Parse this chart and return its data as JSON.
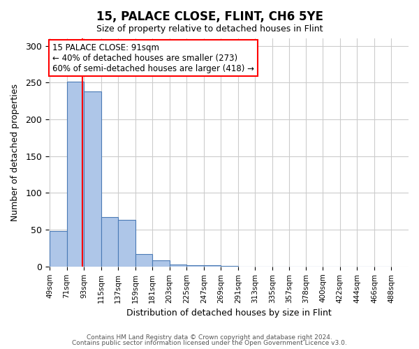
{
  "title": "15, PALACE CLOSE, FLINT, CH6 5YE",
  "subtitle": "Size of property relative to detached houses in Flint",
  "xlabel": "Distribution of detached houses by size in Flint",
  "ylabel": "Number of detached properties",
  "bar_color": "#aec6e8",
  "bar_edge_color": "#4a7ab5",
  "bin_edges": [
    49,
    71,
    93,
    115,
    137,
    159,
    181,
    203,
    225,
    247,
    269,
    291,
    313,
    335,
    357,
    378,
    400,
    422,
    444,
    466,
    488
  ],
  "bar_heights": [
    48,
    251,
    238,
    67,
    63,
    17,
    8,
    3,
    2,
    2,
    1,
    0,
    0,
    0,
    0,
    0,
    0,
    0,
    0,
    0
  ],
  "tick_labels": [
    "49sqm",
    "71sqm",
    "93sqm",
    "115sqm",
    "137sqm",
    "159sqm",
    "181sqm",
    "203sqm",
    "225sqm",
    "247sqm",
    "269sqm",
    "291sqm",
    "313sqm",
    "335sqm",
    "357sqm",
    "378sqm",
    "400sqm",
    "422sqm",
    "444sqm",
    "466sqm",
    "488sqm"
  ],
  "red_line_x": 91,
  "ylim": [
    0,
    310
  ],
  "yticks": [
    0,
    50,
    100,
    150,
    200,
    250,
    300
  ],
  "annotation_text": "15 PALACE CLOSE: 91sqm\n← 40% of detached houses are smaller (273)\n60% of semi-detached houses are larger (418) →",
  "footer_line1": "Contains HM Land Registry data © Crown copyright and database right 2024.",
  "footer_line2": "Contains public sector information licensed under the Open Government Licence v3.0.",
  "background_color": "#ffffff",
  "grid_color": "#cccccc"
}
